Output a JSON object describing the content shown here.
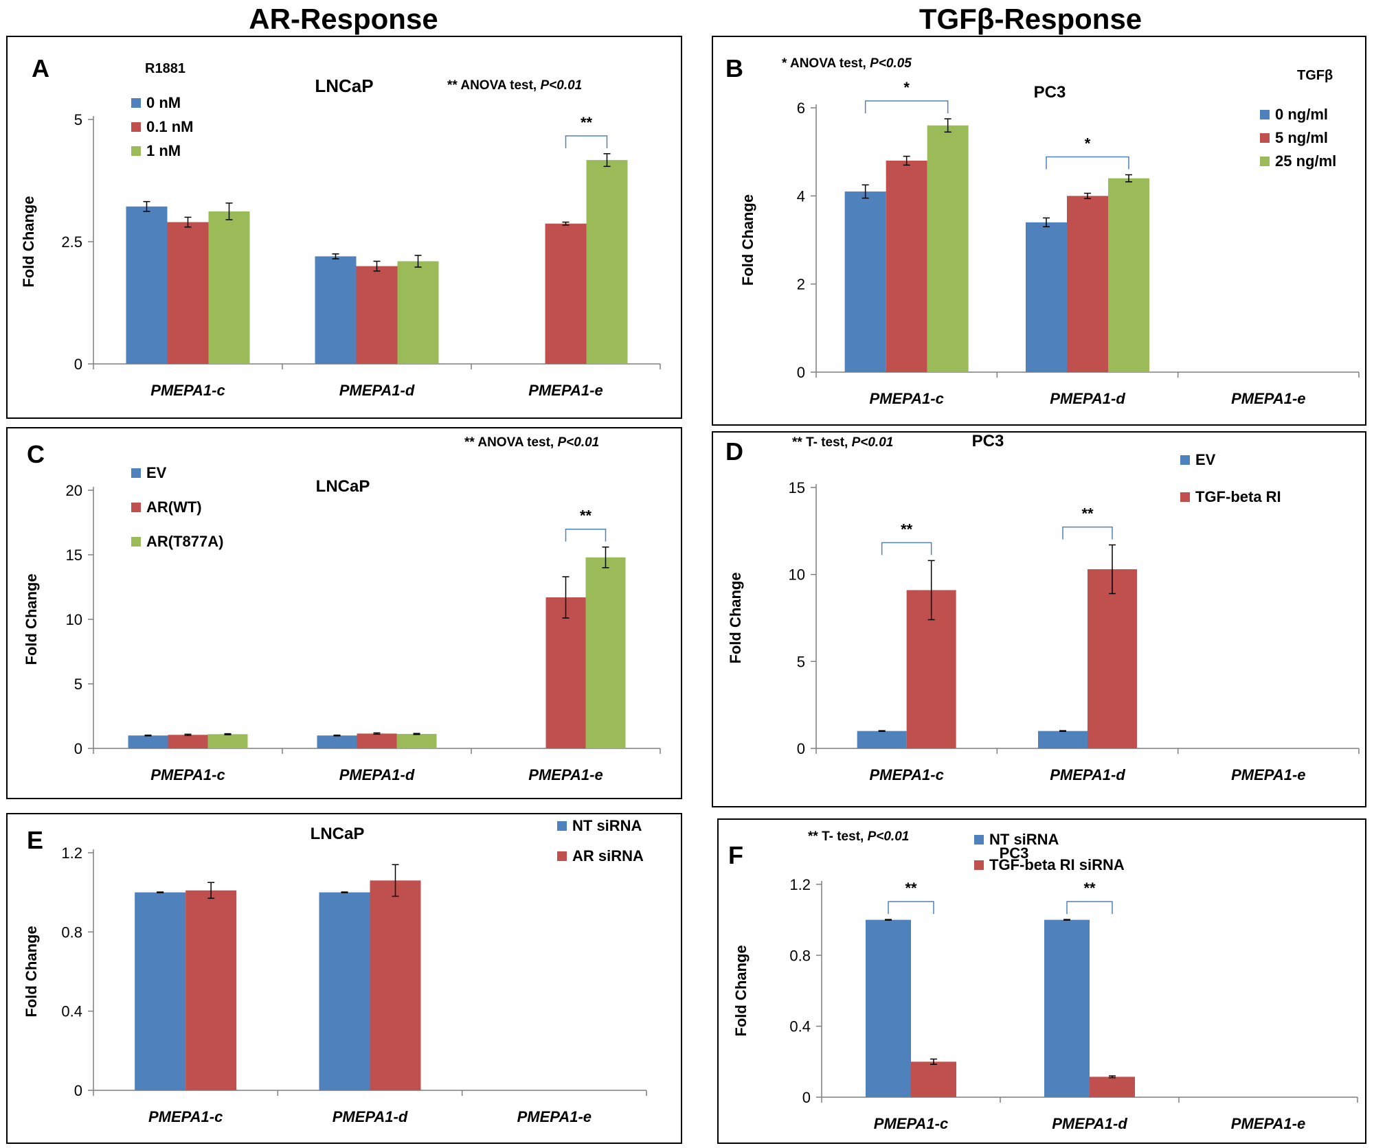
{
  "titles": {
    "left": "AR-Response",
    "right": "TGFβ-Response"
  },
  "colors": {
    "blue": "#4F81BD",
    "red": "#C0504D",
    "green": "#9BBB59",
    "bracket": "#4F81BD"
  },
  "chart_data": [
    {
      "panel": "A",
      "type": "bar",
      "title": "LNCaP",
      "stat_note": {
        "prefix": "** ANOVA test, ",
        "p": "P<0.01"
      },
      "legend_title": "R1881",
      "categories": [
        "PMEPA1-c",
        "PMEPA1-d",
        "PMEPA1-e"
      ],
      "series": [
        {
          "name": "0 nM",
          "color": "#4F81BD",
          "values": [
            3.22,
            2.2,
            0
          ],
          "errors": [
            0.1,
            0.05,
            0
          ]
        },
        {
          "name": "0.1 nM",
          "color": "#C0504D",
          "values": [
            2.9,
            2.0,
            2.87
          ],
          "errors": [
            0.1,
            0.1,
            0.03
          ]
        },
        {
          "name": "1 nM",
          "color": "#9BBB59",
          "values": [
            3.12,
            2.1,
            4.17
          ],
          "errors": [
            0.17,
            0.12,
            0.13
          ]
        }
      ],
      "ylabel": "Fold Change",
      "ylim": [
        0,
        5
      ],
      "yticks": [
        "0",
        "2.5",
        "5"
      ],
      "significance": [
        {
          "category": 2,
          "from": 1,
          "to": 2,
          "label": "**"
        }
      ]
    },
    {
      "panel": "B",
      "type": "bar",
      "title": "PC3",
      "stat_note": {
        "prefix": "* ANOVA test, ",
        "p": "P<0.05"
      },
      "legend_title": "TGFβ",
      "categories": [
        "PMEPA1-c",
        "PMEPA1-d",
        "PMEPA1-e"
      ],
      "series": [
        {
          "name": "0 ng/ml",
          "color": "#4F81BD",
          "values": [
            4.1,
            3.4,
            0
          ],
          "errors": [
            0.15,
            0.1,
            0
          ]
        },
        {
          "name": "5 ng/ml",
          "color": "#C0504D",
          "values": [
            4.8,
            4.0,
            0
          ],
          "errors": [
            0.1,
            0.06,
            0
          ]
        },
        {
          "name": "25 ng/ml",
          "color": "#9BBB59",
          "values": [
            5.6,
            4.4,
            0
          ],
          "errors": [
            0.15,
            0.08,
            0
          ]
        }
      ],
      "ylabel": "Fold Change",
      "ylim": [
        0,
        6
      ],
      "yticks": [
        "0",
        "2",
        "4",
        "6"
      ],
      "significance": [
        {
          "category": 0,
          "from": 0,
          "to": 2,
          "label": "*"
        },
        {
          "category": 1,
          "from": 0,
          "to": 2,
          "label": "*"
        }
      ]
    },
    {
      "panel": "C",
      "type": "bar",
      "title": "LNCaP",
      "stat_note": {
        "prefix": "** ANOVA test, ",
        "p": "P<0.01"
      },
      "legend_title": "",
      "categories": [
        "PMEPA1-c",
        "PMEPA1-d",
        "PMEPA1-e"
      ],
      "series": [
        {
          "name": "EV",
          "color": "#4F81BD",
          "values": [
            1.0,
            1.0,
            0
          ],
          "errors": [
            0.03,
            0.03,
            0
          ]
        },
        {
          "name": "AR(WT)",
          "color": "#C0504D",
          "values": [
            1.05,
            1.15,
            11.7
          ],
          "errors": [
            0.05,
            0.05,
            1.6
          ]
        },
        {
          "name": "AR(T877A)",
          "color": "#9BBB59",
          "values": [
            1.1,
            1.12,
            14.8
          ],
          "errors": [
            0.04,
            0.04,
            0.8
          ]
        }
      ],
      "ylabel": "Fold Change",
      "ylim": [
        0,
        20
      ],
      "yticks": [
        "0",
        "5",
        "10",
        "15",
        "20"
      ],
      "significance": [
        {
          "category": 2,
          "from": 1,
          "to": 2,
          "label": "**"
        }
      ]
    },
    {
      "panel": "D",
      "type": "bar",
      "title": "PC3",
      "stat_note": {
        "prefix": "** T- test, ",
        "p": "P<0.01"
      },
      "legend_title": "",
      "categories": [
        "PMEPA1-c",
        "PMEPA1-d",
        "PMEPA1-e"
      ],
      "series": [
        {
          "name": "EV",
          "color": "#4F81BD",
          "values": [
            1.0,
            1.0,
            0
          ],
          "errors": [
            0.02,
            0.02,
            0
          ]
        },
        {
          "name": "TGF-beta RI",
          "color": "#C0504D",
          "values": [
            9.1,
            10.3,
            0
          ],
          "errors": [
            1.7,
            1.4,
            0
          ]
        }
      ],
      "ylabel": "Fold Change",
      "ylim": [
        0,
        15
      ],
      "yticks": [
        "0",
        "5",
        "10",
        "15"
      ],
      "significance": [
        {
          "category": 0,
          "from": 0,
          "to": 1,
          "label": "**"
        },
        {
          "category": 1,
          "from": 0,
          "to": 1,
          "label": "**"
        }
      ]
    },
    {
      "panel": "E",
      "type": "bar",
      "title": "LNCaP",
      "stat_note": null,
      "legend_title": "",
      "categories": [
        "PMEPA1-c",
        "PMEPA1-d",
        "PMEPA1-e"
      ],
      "series": [
        {
          "name": "NT siRNA",
          "color": "#4F81BD",
          "values": [
            1.0,
            1.0,
            0
          ],
          "errors": [
            0.002,
            0.002,
            0
          ]
        },
        {
          "name": "AR siRNA",
          "color": "#C0504D",
          "values": [
            1.01,
            1.06,
            0
          ],
          "errors": [
            0.04,
            0.08,
            0
          ]
        }
      ],
      "ylabel": "Fold Change",
      "ylim": [
        0,
        1.2
      ],
      "yticks": [
        "0",
        "0.4",
        "0.8",
        "1.2"
      ],
      "significance": []
    },
    {
      "panel": "F",
      "type": "bar",
      "title": "PC3",
      "stat_note": {
        "prefix": "** T- test, ",
        "p": "P<0.01"
      },
      "legend_title": "",
      "categories": [
        "PMEPA1-c",
        "PMEPA1-d",
        "PMEPA1-e"
      ],
      "series": [
        {
          "name": "NT siRNA",
          "color": "#4F81BD",
          "values": [
            1.0,
            1.0,
            0
          ],
          "errors": [
            0.002,
            0.002,
            0
          ]
        },
        {
          "name": "TGF-beta RI siRNA",
          "color": "#C0504D",
          "values": [
            0.2,
            0.115,
            0
          ],
          "errors": [
            0.015,
            0.005,
            0
          ]
        }
      ],
      "ylabel": "Fold Change",
      "ylim": [
        0,
        1.2
      ],
      "yticks": [
        "0",
        "0.4",
        "0.8",
        "1.2"
      ],
      "significance": [
        {
          "category": 0,
          "from": 0,
          "to": 1,
          "label": "**"
        },
        {
          "category": 1,
          "from": 0,
          "to": 1,
          "label": "**"
        }
      ]
    }
  ]
}
